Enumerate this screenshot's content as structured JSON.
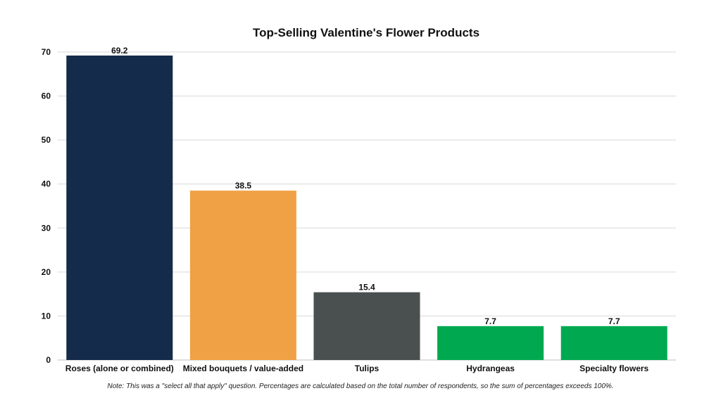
{
  "chart_data": {
    "type": "bar",
    "title": "Top-Selling Valentine's Flower Products",
    "xlabel": "",
    "ylabel": "",
    "ylim": [
      0,
      70
    ],
    "yticks": [
      0,
      10,
      20,
      30,
      40,
      50,
      60,
      70
    ],
    "grid": true,
    "legend": "none",
    "categories": [
      "Roses (alone or combined)",
      "Mixed bouquets / value-added",
      "Tulips",
      "Hydrangeas",
      "Specialty flowers"
    ],
    "values": [
      69.2,
      38.5,
      15.4,
      7.7,
      7.7
    ],
    "value_labels": [
      "69.2",
      "38.5",
      "15.4",
      "7.7",
      "7.7"
    ],
    "colors": [
      "#142b4b",
      "#f0a145",
      "#4a5050",
      "#00a94f",
      "#00a94f"
    ],
    "note": "Note: This was a \"select all that apply\" question. Percentages are calculated based on the total number of respondents, so the sum of percentages exceeds 100%."
  }
}
